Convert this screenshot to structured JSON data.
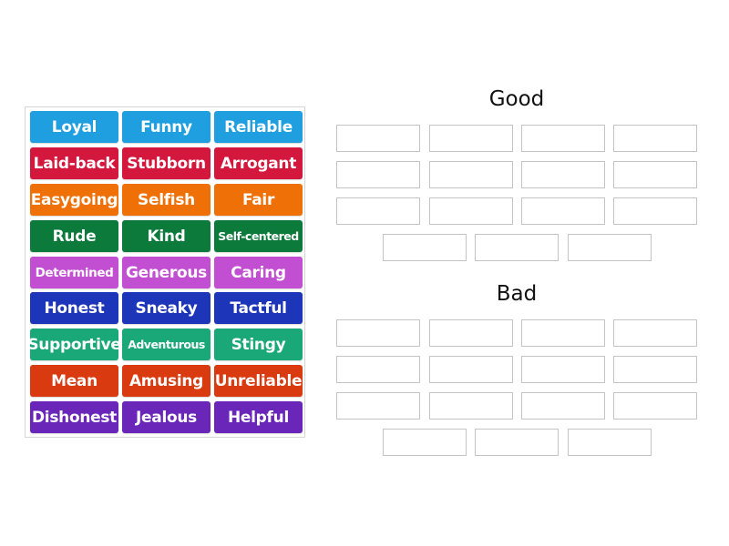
{
  "tile_bank": {
    "tiles": [
      {
        "label": "Loyal",
        "color": "#1f9ee0"
      },
      {
        "label": "Funny",
        "color": "#1f9ee0"
      },
      {
        "label": "Reliable",
        "color": "#1f9ee0"
      },
      {
        "label": "Laid-back",
        "color": "#d4173c"
      },
      {
        "label": "Stubborn",
        "color": "#d4173c"
      },
      {
        "label": "Arrogant",
        "color": "#d4173c"
      },
      {
        "label": "Easygoing",
        "color": "#f07008"
      },
      {
        "label": "Selfish",
        "color": "#f07008"
      },
      {
        "label": "Fair",
        "color": "#f07008"
      },
      {
        "label": "Rude",
        "color": "#0b7a3b"
      },
      {
        "label": "Kind",
        "color": "#0b7a3b"
      },
      {
        "label": "Self-centered",
        "color": "#0b7a3b"
      },
      {
        "label": "Determined",
        "color": "#c24fd2"
      },
      {
        "label": "Generous",
        "color": "#c24fd2"
      },
      {
        "label": "Caring",
        "color": "#c24fd2"
      },
      {
        "label": "Honest",
        "color": "#1d35b8"
      },
      {
        "label": "Sneaky",
        "color": "#1d35b8"
      },
      {
        "label": "Tactful",
        "color": "#1d35b8"
      },
      {
        "label": "Supportive",
        "color": "#1ba878"
      },
      {
        "label": "Adventurous",
        "color": "#1ba878"
      },
      {
        "label": "Stingy",
        "color": "#1ba878"
      },
      {
        "label": "Mean",
        "color": "#d93a10"
      },
      {
        "label": "Amusing",
        "color": "#d93a10"
      },
      {
        "label": "Unreliable",
        "color": "#d93a10"
      },
      {
        "label": "Dishonest",
        "color": "#6a26b8"
      },
      {
        "label": "Jealous",
        "color": "#6a26b8"
      },
      {
        "label": "Helpful",
        "color": "#6a26b8"
      }
    ]
  },
  "groups": [
    {
      "title": "Good",
      "slot_count": 15
    },
    {
      "title": "Bad",
      "slot_count": 15
    }
  ]
}
